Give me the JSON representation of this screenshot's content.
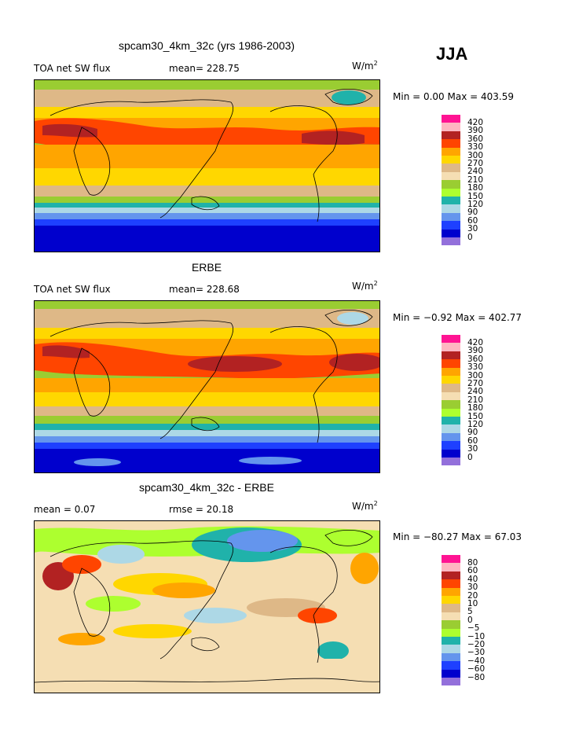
{
  "season": "JJA",
  "units_base": "W/m",
  "units_exp": "2",
  "panels": [
    {
      "title": "spcam30_4km_32c (yrs 1986-2003)",
      "left_label": "TOA net SW flux",
      "mean_text": "mean= 228.75",
      "right_stat": "Min =    0.00 Max = 403.59",
      "legend_labels": [
        "420",
        "390",
        "360",
        "330",
        "300",
        "270",
        "240",
        "210",
        "180",
        "150",
        "120",
        "90",
        "60",
        "30",
        "0"
      ]
    },
    {
      "title": "ERBE",
      "left_label": "TOA net SW flux",
      "mean_text": "mean= 228.68",
      "right_stat": "Min =  −0.92 Max = 402.77",
      "legend_labels": [
        "420",
        "390",
        "360",
        "330",
        "300",
        "270",
        "240",
        "210",
        "180",
        "150",
        "120",
        "90",
        "60",
        "30",
        "0"
      ]
    },
    {
      "title": "spcam30_4km_32c - ERBE",
      "left_label": "mean =    0.07",
      "mean_text": "rmse =  20.18",
      "right_stat": "Min = −80.27 Max =  67.03",
      "legend_labels": [
        "80",
        "60",
        "40",
        "30",
        "20",
        "10",
        "5",
        "0",
        "−5",
        "−10",
        "−20",
        "−30",
        "−40",
        "−60",
        "−80"
      ]
    }
  ],
  "legend_colors": [
    "#ff1493",
    "#ffb6c1",
    "#b22222",
    "#ff4500",
    "#ffa500",
    "#ffd700",
    "#deb887",
    "#f5deb3",
    "#9acd32",
    "#adff2f",
    "#20b2aa",
    "#add8e6",
    "#6495ed",
    "#1e40ff",
    "#0000cd",
    "#9370db"
  ],
  "chart_data": [
    {
      "type": "heatmap",
      "title": "spcam30_4km_32c (yrs 1986-2003)",
      "variable": "TOA net SW flux",
      "units": "W/m2",
      "mean": 228.75,
      "min": 0.0,
      "max": 403.59,
      "contour_levels": [
        0,
        30,
        60,
        90,
        120,
        150,
        180,
        210,
        240,
        270,
        300,
        330,
        360,
        390,
        420
      ],
      "grid": false,
      "legend": "right"
    },
    {
      "type": "heatmap",
      "title": "ERBE",
      "variable": "TOA net SW flux",
      "units": "W/m2",
      "mean": 228.68,
      "min": -0.92,
      "max": 402.77,
      "contour_levels": [
        0,
        30,
        60,
        90,
        120,
        150,
        180,
        210,
        240,
        270,
        300,
        330,
        360,
        390,
        420
      ],
      "grid": false,
      "legend": "right"
    },
    {
      "type": "heatmap",
      "title": "spcam30_4km_32c - ERBE",
      "units": "W/m2",
      "mean": 0.07,
      "rmse": 20.18,
      "min": -80.27,
      "max": 67.03,
      "contour_levels": [
        -80,
        -60,
        -40,
        -30,
        -20,
        -10,
        -5,
        0,
        5,
        10,
        20,
        30,
        40,
        60,
        80
      ],
      "grid": false,
      "legend": "right"
    }
  ]
}
